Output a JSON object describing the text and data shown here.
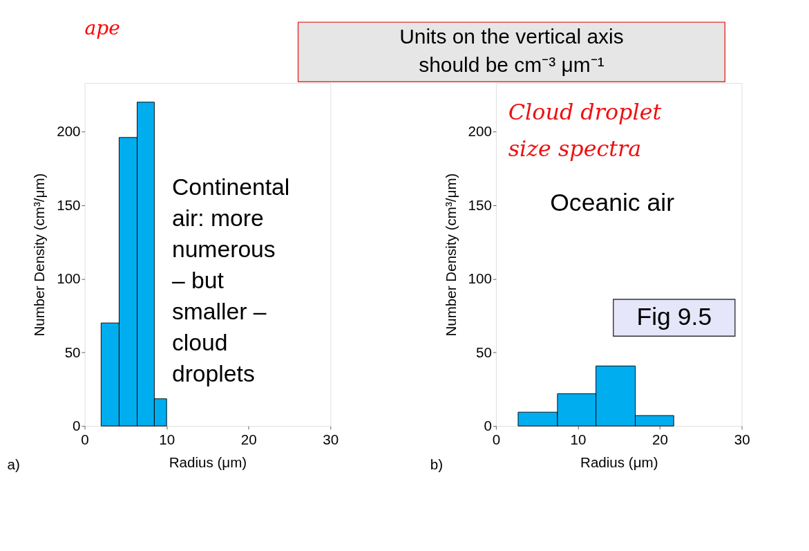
{
  "chart_data": [
    {
      "type": "other",
      "annotations": [
        "Units on the vertical axis\nshould be cm⁻³ μm⁻¹",
        "ape"
      ]
    },
    {
      "type": "histogram",
      "bins": [
        2.0,
        4.2,
        6.4,
        8.5,
        10.0
      ],
      "values": [
        70,
        196,
        220,
        18.5
      ],
      "color": "#00adef",
      "xlim": [
        0,
        30
      ],
      "ylim": [
        0,
        233
      ],
      "xticks": [
        0,
        10,
        20,
        30
      ],
      "yticks": [
        0,
        50,
        100,
        150,
        200
      ],
      "xlabel": "Radius (μm)",
      "ylabel": "Number Density (cm³/μm)",
      "annotations": [
        "Continental\nair: more\nnumerous\n– but\nsmaller –\ncloud\ndroplets",
        "a)"
      ]
    },
    {
      "type": "histogram",
      "bins": [
        2.7,
        7.5,
        12.2,
        17.0,
        21.7
      ],
      "values": [
        9.4,
        21.9,
        40.8,
        7.1
      ],
      "color": "#00adef",
      "xlim": [
        0,
        30
      ],
      "ylim": [
        0,
        233
      ],
      "xticks": [
        0,
        10,
        20,
        30
      ],
      "yticks": [
        0,
        50,
        100,
        150,
        200
      ],
      "xlabel": "Radius (μm)",
      "ylabel": "Number Density (cm³/μm)",
      "annotations": [
        "Cloud droplet\nsize spectra",
        "Oceanic air",
        "Fig 9.5",
        "b)"
      ]
    }
  ]
}
